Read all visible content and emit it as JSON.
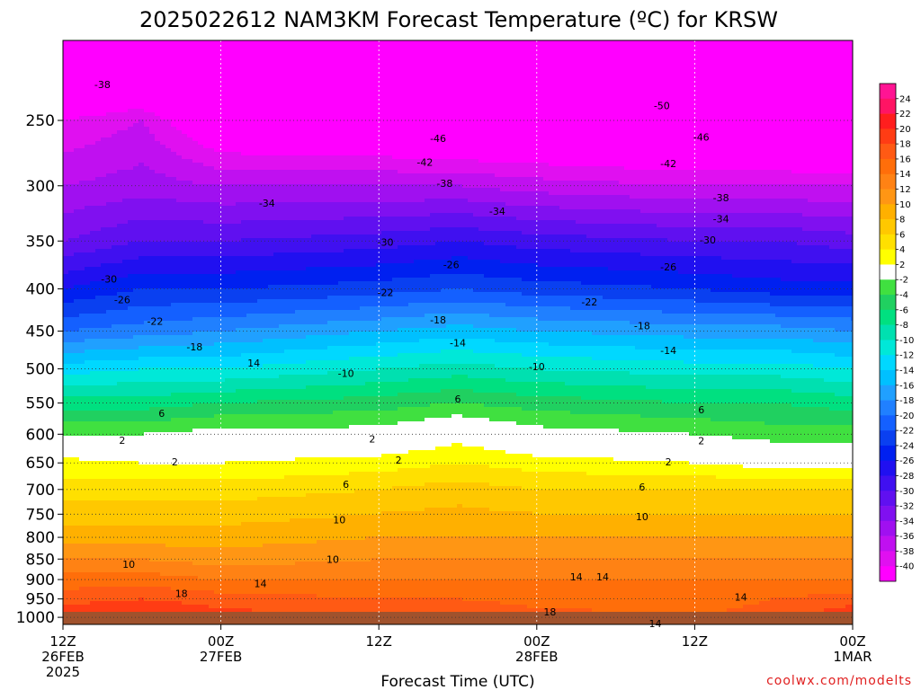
{
  "chart_data": {
    "type": "heatmap",
    "title": "2025022612 NAM3KM Forecast Temperature (ºC) for KRSW",
    "xlabel": "Forecast Time (UTC)",
    "ylabel": "",
    "watermark": "coolwx.com/modelts",
    "x_ticks": [
      {
        "hour": 0,
        "label": "12Z",
        "date": "26FEB",
        "year": "2025"
      },
      {
        "hour": 12,
        "label": "00Z",
        "date": "27FEB",
        "year": ""
      },
      {
        "hour": 24,
        "label": "12Z",
        "date": "",
        "year": ""
      },
      {
        "hour": 36,
        "label": "00Z",
        "date": "28FEB",
        "year": ""
      },
      {
        "hour": 48,
        "label": "12Z",
        "date": "",
        "year": ""
      },
      {
        "hour": 60,
        "label": "00Z",
        "date": "1MAR",
        "year": ""
      }
    ],
    "xlim": [
      0,
      60
    ],
    "y_ticks": [
      250,
      300,
      350,
      400,
      450,
      500,
      550,
      600,
      650,
      700,
      750,
      800,
      850,
      900,
      950,
      1000
    ],
    "ylim_hpa": [
      200,
      1020
    ],
    "y_scale": "log-pressure",
    "y_inverted": true,
    "grid": "dotted",
    "colorbar": {
      "levels": [
        24,
        22,
        20,
        18,
        16,
        14,
        12,
        10,
        8,
        6,
        4,
        2,
        -2,
        -4,
        -6,
        -8,
        -10,
        -12,
        -14,
        -16,
        -18,
        -20,
        -22,
        -24,
        -26,
        -28,
        -30,
        -32,
        -34,
        -36,
        -38,
        -40
      ],
      "colors": [
        "#ff1493",
        "#ff1464",
        "#ff1e1e",
        "#ff3c14",
        "#ff5a14",
        "#ff6e0a",
        "#ff8214",
        "#ff9614",
        "#ffb000",
        "#ffc800",
        "#ffe000",
        "#ffff00",
        "#ffffff",
        "#40e040",
        "#20d060",
        "#00e080",
        "#00e0b0",
        "#00e8d8",
        "#00d8ff",
        "#00c0ff",
        "#20a0ff",
        "#2080ff",
        "#1460ff",
        "#0a40f0",
        "#0020f0",
        "#2010f0",
        "#4010f0",
        "#6010f0",
        "#8010f0",
        "#a010f0",
        "#c010f0",
        "#e010f0",
        "#ff00ff"
      ]
    },
    "profiles": [
      {
        "hour": 0,
        "temps": [
          [
            200,
            -52
          ],
          [
            250,
            -40
          ],
          [
            300,
            -36
          ],
          [
            350,
            -32
          ],
          [
            400,
            -26
          ],
          [
            450,
            -20
          ],
          [
            500,
            -13
          ],
          [
            550,
            -7
          ],
          [
            600,
            -2
          ],
          [
            640,
            2
          ],
          [
            700,
            5
          ],
          [
            800,
            9
          ],
          [
            850,
            12
          ],
          [
            900,
            15
          ],
          [
            950,
            17
          ],
          [
            1000,
            20
          ]
        ]
      },
      {
        "hour": 6,
        "temps": [
          [
            200,
            -52
          ],
          [
            250,
            -38
          ],
          [
            300,
            -35
          ],
          [
            350,
            -30
          ],
          [
            400,
            -24
          ],
          [
            450,
            -19
          ],
          [
            500,
            -12
          ],
          [
            550,
            -7
          ],
          [
            600,
            -2
          ],
          [
            650,
            2
          ],
          [
            700,
            5
          ],
          [
            800,
            9
          ],
          [
            850,
            12
          ],
          [
            900,
            15
          ],
          [
            950,
            18
          ],
          [
            1000,
            21
          ]
        ]
      },
      {
        "hour": 12,
        "temps": [
          [
            200,
            -54
          ],
          [
            250,
            -44
          ],
          [
            300,
            -36
          ],
          [
            350,
            -30
          ],
          [
            400,
            -24
          ],
          [
            450,
            -18
          ],
          [
            500,
            -12
          ],
          [
            550,
            -6
          ],
          [
            600,
            -1
          ],
          [
            650,
            2
          ],
          [
            700,
            5
          ],
          [
            800,
            9
          ],
          [
            850,
            11
          ],
          [
            900,
            14
          ],
          [
            950,
            17
          ],
          [
            1000,
            19
          ]
        ]
      },
      {
        "hour": 24,
        "temps": [
          [
            200,
            -55
          ],
          [
            250,
            -45
          ],
          [
            300,
            -36
          ],
          [
            350,
            -29
          ],
          [
            400,
            -23
          ],
          [
            450,
            -16
          ],
          [
            500,
            -10
          ],
          [
            550,
            -5
          ],
          [
            600,
            -1
          ],
          [
            650,
            3
          ],
          [
            700,
            6
          ],
          [
            800,
            10
          ],
          [
            850,
            12
          ],
          [
            900,
            14
          ],
          [
            950,
            16
          ],
          [
            1000,
            18
          ]
        ]
      },
      {
        "hour": 30,
        "temps": [
          [
            200,
            -56
          ],
          [
            250,
            -46
          ],
          [
            300,
            -36
          ],
          [
            350,
            -28
          ],
          [
            400,
            -22
          ],
          [
            450,
            -15
          ],
          [
            500,
            -9
          ],
          [
            550,
            -4
          ],
          [
            600,
            1
          ],
          [
            650,
            4
          ],
          [
            700,
            7
          ],
          [
            800,
            10
          ],
          [
            850,
            12
          ],
          [
            900,
            14
          ],
          [
            950,
            16
          ],
          [
            1000,
            19
          ]
        ]
      },
      {
        "hour": 36,
        "temps": [
          [
            200,
            -56
          ],
          [
            250,
            -46
          ],
          [
            300,
            -37
          ],
          [
            350,
            -29
          ],
          [
            400,
            -23
          ],
          [
            450,
            -16
          ],
          [
            500,
            -10
          ],
          [
            550,
            -5
          ],
          [
            600,
            -1
          ],
          [
            650,
            3
          ],
          [
            700,
            6
          ],
          [
            800,
            10
          ],
          [
            850,
            12
          ],
          [
            900,
            14
          ],
          [
            950,
            15
          ],
          [
            1000,
            17
          ]
        ]
      },
      {
        "hour": 48,
        "temps": [
          [
            200,
            -56
          ],
          [
            250,
            -47
          ],
          [
            300,
            -38
          ],
          [
            350,
            -30
          ],
          [
            400,
            -24
          ],
          [
            450,
            -17
          ],
          [
            500,
            -11
          ],
          [
            550,
            -6
          ],
          [
            600,
            -2
          ],
          [
            650,
            2
          ],
          [
            700,
            6
          ],
          [
            800,
            10
          ],
          [
            850,
            12
          ],
          [
            900,
            14
          ],
          [
            950,
            15
          ],
          [
            1000,
            16
          ]
        ]
      },
      {
        "hour": 54,
        "temps": [
          [
            200,
            -58
          ],
          [
            250,
            -47
          ],
          [
            300,
            -38
          ],
          [
            350,
            -30
          ],
          [
            400,
            -25
          ],
          [
            450,
            -17
          ],
          [
            500,
            -11
          ],
          [
            550,
            -6
          ],
          [
            600,
            -3
          ],
          [
            650,
            1
          ],
          [
            700,
            6
          ],
          [
            800,
            10
          ],
          [
            850,
            12
          ],
          [
            900,
            14
          ],
          [
            950,
            16
          ],
          [
            1000,
            17
          ]
        ]
      },
      {
        "hour": 60,
        "temps": [
          [
            200,
            -58
          ],
          [
            250,
            -48
          ],
          [
            300,
            -38
          ],
          [
            350,
            -31
          ],
          [
            400,
            -25
          ],
          [
            450,
            -18
          ],
          [
            500,
            -12
          ],
          [
            550,
            -7
          ],
          [
            600,
            -3
          ],
          [
            650,
            1
          ],
          [
            700,
            6
          ],
          [
            800,
            10
          ],
          [
            850,
            12
          ],
          [
            900,
            14
          ],
          [
            950,
            17
          ],
          [
            1000,
            20
          ]
        ]
      }
    ],
    "contour_labels": [
      {
        "hour": 3,
        "hpa": 226,
        "text": "-38"
      },
      {
        "hour": 15.5,
        "hpa": 315,
        "text": "-34"
      },
      {
        "hour": 24.5,
        "hpa": 351,
        "text": "-30"
      },
      {
        "hour": 28.5,
        "hpa": 263,
        "text": "-46"
      },
      {
        "hour": 27.5,
        "hpa": 281,
        "text": "-42"
      },
      {
        "hour": 29,
        "hpa": 298,
        "text": "-38"
      },
      {
        "hour": 33,
        "hpa": 322,
        "text": "-34"
      },
      {
        "hour": 29.5,
        "hpa": 374,
        "text": "-26"
      },
      {
        "hour": 24.5,
        "hpa": 404,
        "text": "-22"
      },
      {
        "hour": 28.5,
        "hpa": 436,
        "text": "-18"
      },
      {
        "hour": 30,
        "hpa": 465,
        "text": "-14"
      },
      {
        "hour": 21.5,
        "hpa": 506,
        "text": "-10"
      },
      {
        "hour": 30,
        "hpa": 544,
        "text": "6"
      },
      {
        "hour": 3.5,
        "hpa": 389,
        "text": "-30"
      },
      {
        "hour": 4.5,
        "hpa": 412,
        "text": "-26"
      },
      {
        "hour": 7,
        "hpa": 438,
        "text": "-22"
      },
      {
        "hour": 10,
        "hpa": 470,
        "text": "-18"
      },
      {
        "hour": 14.5,
        "hpa": 492,
        "text": "14"
      },
      {
        "hour": 7.5,
        "hpa": 566,
        "text": "6"
      },
      {
        "hour": 4.5,
        "hpa": 610,
        "text": "2"
      },
      {
        "hour": 8.5,
        "hpa": 648,
        "text": "2"
      },
      {
        "hour": 23.5,
        "hpa": 608,
        "text": "2"
      },
      {
        "hour": 25.5,
        "hpa": 645,
        "text": "2"
      },
      {
        "hour": 21,
        "hpa": 762,
        "text": "10"
      },
      {
        "hour": 20.5,
        "hpa": 850,
        "text": "10"
      },
      {
        "hour": 5,
        "hpa": 862,
        "text": "10"
      },
      {
        "hour": 9,
        "hpa": 935,
        "text": "18"
      },
      {
        "hour": 15,
        "hpa": 910,
        "text": "14"
      },
      {
        "hour": 21.5,
        "hpa": 690,
        "text": "6"
      },
      {
        "hour": 36,
        "hpa": 497,
        "text": "-10"
      },
      {
        "hour": 40,
        "hpa": 415,
        "text": "-22"
      },
      {
        "hour": 37,
        "hpa": 985,
        "text": "18"
      },
      {
        "hour": 39,
        "hpa": 893,
        "text": "14"
      },
      {
        "hour": 41,
        "hpa": 893,
        "text": "14"
      },
      {
        "hour": 45.5,
        "hpa": 240,
        "text": "-50"
      },
      {
        "hour": 46,
        "hpa": 282,
        "text": "-42"
      },
      {
        "hour": 48.5,
        "hpa": 262,
        "text": "-46"
      },
      {
        "hour": 50,
        "hpa": 310,
        "text": "-38"
      },
      {
        "hour": 50,
        "hpa": 329,
        "text": "-34"
      },
      {
        "hour": 49,
        "hpa": 349,
        "text": "-30"
      },
      {
        "hour": 46,
        "hpa": 376,
        "text": "-26"
      },
      {
        "hour": 44,
        "hpa": 443,
        "text": "-18"
      },
      {
        "hour": 46,
        "hpa": 475,
        "text": "-14"
      },
      {
        "hour": 48.5,
        "hpa": 560,
        "text": "6"
      },
      {
        "hour": 48.5,
        "hpa": 611,
        "text": "2"
      },
      {
        "hour": 46,
        "hpa": 648,
        "text": "2"
      },
      {
        "hour": 44,
        "hpa": 695,
        "text": "6"
      },
      {
        "hour": 44,
        "hpa": 755,
        "text": "10"
      },
      {
        "hour": 51.5,
        "hpa": 945,
        "text": "14"
      },
      {
        "hour": 45,
        "hpa": 1017,
        "text": "14"
      }
    ]
  }
}
